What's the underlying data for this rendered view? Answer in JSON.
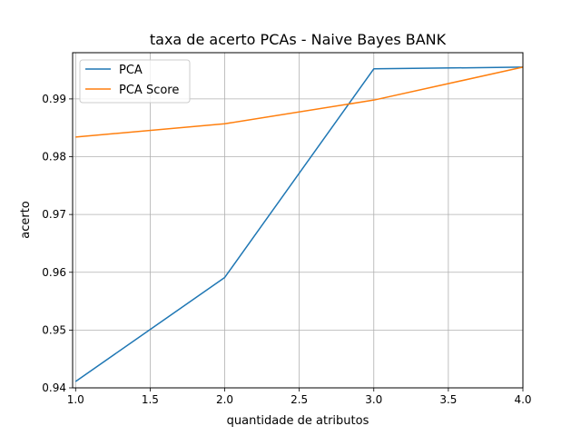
{
  "chart_data": {
    "type": "line",
    "title": "taxa de acerto PCAs - Naive Bayes BANK",
    "xlabel": "quantidade de atributos",
    "ylabel": "acerto",
    "xlim": [
      0.98,
      4.0
    ],
    "ylim": [
      0.94,
      0.998
    ],
    "xticks": [
      "1.0",
      "1.5",
      "2.0",
      "2.5",
      "3.0",
      "3.5",
      "4.0"
    ],
    "yticks": [
      "0.94",
      "0.95",
      "0.96",
      "0.97",
      "0.98",
      "0.99"
    ],
    "grid": true,
    "legend_position": "top-left",
    "series": [
      {
        "name": "PCA",
        "color": "#1f77b4",
        "x": [
          1,
          2,
          3,
          4
        ],
        "y": [
          0.9411,
          0.9591,
          0.9952,
          0.9955
        ]
      },
      {
        "name": "PCA Score",
        "color": "#ff7f0e",
        "x": [
          1,
          2,
          3,
          4
        ],
        "y": [
          0.9834,
          0.9857,
          0.9898,
          0.9955
        ]
      }
    ]
  }
}
